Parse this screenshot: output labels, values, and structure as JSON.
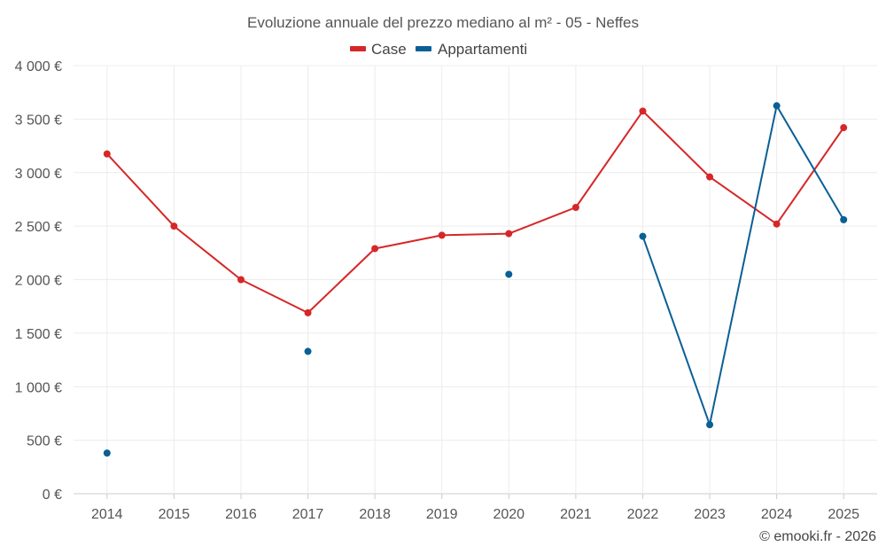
{
  "chart_data": {
    "type": "line",
    "title": "Evoluzione annuale del prezzo mediano al m² - 05 - Neffes",
    "categories": [
      "2014",
      "2015",
      "2016",
      "2017",
      "2018",
      "2019",
      "2020",
      "2021",
      "2022",
      "2023",
      "2024",
      "2025"
    ],
    "series": [
      {
        "name": "Case",
        "color": "#d62728",
        "values": [
          3175,
          2500,
          2000,
          1690,
          2290,
          2415,
          2430,
          2675,
          3575,
          2960,
          2520,
          3420
        ]
      },
      {
        "name": "Appartamenti",
        "color": "#0a5f96",
        "values": [
          380,
          null,
          null,
          1330,
          null,
          null,
          2050,
          null,
          2405,
          645,
          3625,
          2560
        ]
      }
    ],
    "y_ticks": [
      "0 €",
      "500 €",
      "1 000 €",
      "1 500 €",
      "2 000 €",
      "2 500 €",
      "3 000 €",
      "3 500 €",
      "4 000 €"
    ],
    "ylim": [
      0,
      4000
    ],
    "xlabel": "",
    "ylabel": "",
    "grid": true,
    "legend_position": "top-center"
  },
  "credit": "© emooki.fr - 2026"
}
